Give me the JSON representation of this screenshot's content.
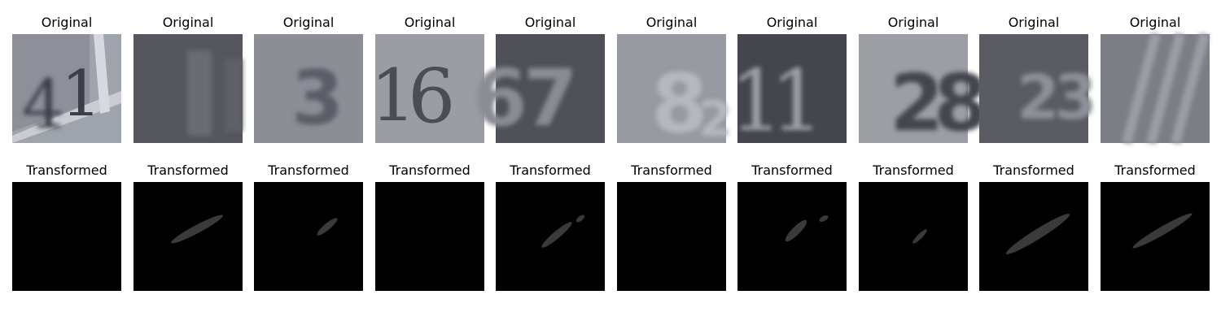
{
  "figure": {
    "rows": [
      {
        "label": "Original",
        "images": [
          {
            "name": "original-digit-41",
            "content": "41"
          },
          {
            "name": "original-digit-blurry-1",
            "content": "1"
          },
          {
            "name": "original-digit-blurry-3",
            "content": "3"
          },
          {
            "name": "original-digit-16",
            "content": "16"
          },
          {
            "name": "original-digit-67",
            "content": "67"
          },
          {
            "name": "original-digit-82",
            "content": "82"
          },
          {
            "name": "original-digit-11",
            "content": "11"
          },
          {
            "name": "original-digit-28",
            "content": "28"
          },
          {
            "name": "original-digit-23",
            "content": "23"
          },
          {
            "name": "original-digit-stripes",
            "content": "1"
          }
        ]
      },
      {
        "label": "Transformed",
        "images": [
          {
            "name": "transformed-empty-1",
            "streak_level": 0
          },
          {
            "name": "transformed-streak-2",
            "streak_level": 0.35
          },
          {
            "name": "transformed-streak-3",
            "streak_level": 0.3
          },
          {
            "name": "transformed-empty-4",
            "streak_level": 0
          },
          {
            "name": "transformed-streak-5",
            "streak_level": 0.3
          },
          {
            "name": "transformed-empty-6",
            "streak_level": 0
          },
          {
            "name": "transformed-streak-7",
            "streak_level": 0.3
          },
          {
            "name": "transformed-streak-8",
            "streak_level": 0.25
          },
          {
            "name": "transformed-streak-9",
            "streak_level": 0.35
          },
          {
            "name": "transformed-streak-10",
            "streak_level": 0.35
          }
        ]
      }
    ],
    "colors": {
      "original_light_bg": "#9a9ca3",
      "original_dark_bg": "#55565e",
      "transformed_bg": "#000000",
      "streak": "#3a3a3a"
    }
  }
}
